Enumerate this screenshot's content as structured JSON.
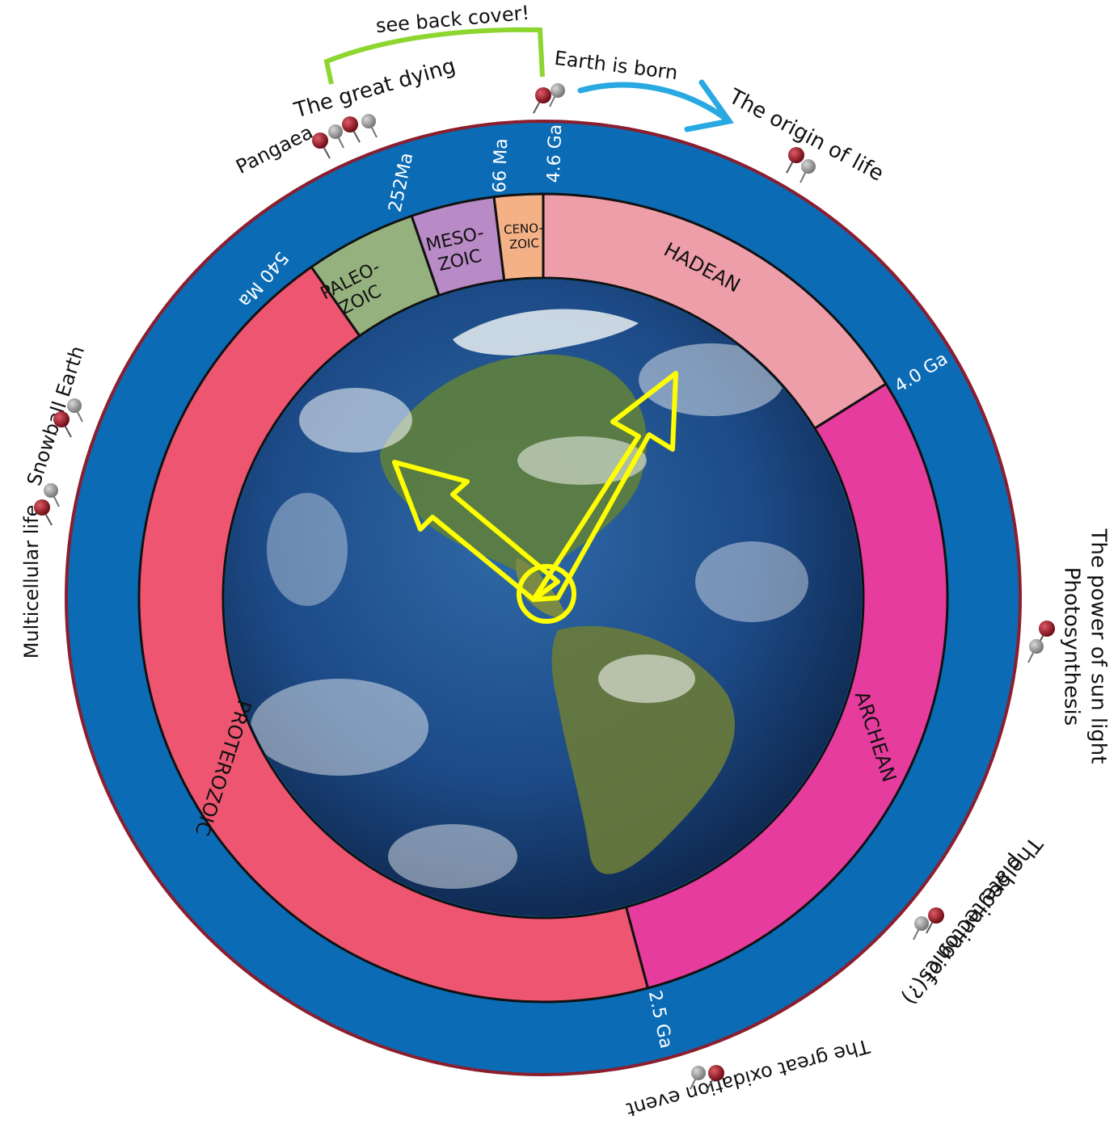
{
  "title": "",
  "eons": [
    {
      "name": "HADEAN",
      "color": "#ee9ea9"
    },
    {
      "name": "ARCHEAN",
      "color": "#e63c9e"
    },
    {
      "name": "PROTEROZOIC",
      "color": "#ee5570"
    }
  ],
  "eras": [
    {
      "line1": "PALEO-",
      "line2": "ZOIC",
      "color": "#95b27e"
    },
    {
      "line1": "MESO-",
      "line2": "ZOIC",
      "color": "#b88ac6"
    },
    {
      "line1": "CENO-",
      "line2": "ZOIC",
      "color": "#f4b186"
    }
  ],
  "time_marks": [
    {
      "label": "4.6 Ga"
    },
    {
      "label": "4.0 Ga"
    },
    {
      "label": "2.5 Ga"
    },
    {
      "label": "540 Ma"
    },
    {
      "label": "252Ma"
    },
    {
      "label": "66 Ma"
    }
  ],
  "events": [
    {
      "label": "Earth is born"
    },
    {
      "label": "The origin of life"
    },
    {
      "label": "The power of sun light",
      "label2": "Photosynthesis"
    },
    {
      "label": "The beginning of",
      "label2": "plate tectonics(?)"
    },
    {
      "label": "The great oxidation event"
    },
    {
      "label": "Multicellular life"
    },
    {
      "label": "Snowball Earth"
    },
    {
      "label": "Pangaea"
    },
    {
      "label": "The great dying"
    }
  ],
  "callout": {
    "label": "see back cover!"
  },
  "colors": {
    "outer_ring": "#0b6bb5",
    "outer_border": "#8b1e2e",
    "hands": "#ffff00",
    "green_bracket": "#8dd630",
    "blue_arrow": "#29a9e1",
    "pin_red": "#8c1420",
    "pin_grey": "#8f8f8f"
  }
}
